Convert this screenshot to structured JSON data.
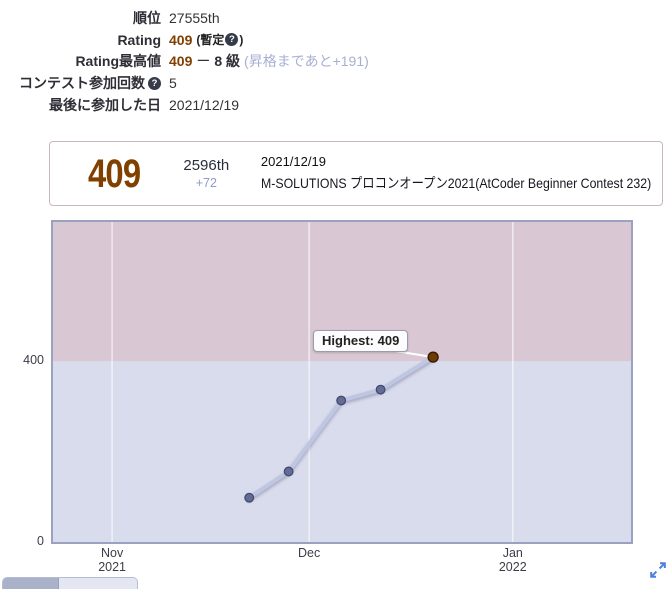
{
  "stats": {
    "rank": {
      "label": "順位",
      "value": "27555th"
    },
    "rating": {
      "label": "Rating",
      "value": "409",
      "note_open": "(暫定",
      "note_close": ")"
    },
    "highest": {
      "label": "Rating最高値",
      "value": "409",
      "separator": "ー",
      "kyu": "8 級",
      "promotion": "(昇格まであと+191)"
    },
    "competitions": {
      "label": "コンテスト参加回数",
      "value": "5"
    },
    "last_competed": {
      "label": "最後に参加した日",
      "value": "2021/12/19"
    }
  },
  "icons": {
    "question": "?",
    "expand": "expand-arrows"
  },
  "latest_contest": {
    "rating": "409",
    "place": "2596th",
    "diff": "+72",
    "date": "2021/12/19",
    "name": "M-SOLUTIONS プロコンオープン2021(AtCoder Beginner Contest 232)"
  },
  "chart_data": {
    "type": "line",
    "series": [
      {
        "name": "Rating",
        "x": [
          "2021-11-21",
          "2021-11-27",
          "2021-12-05",
          "2021-12-11",
          "2021-12-19"
        ],
        "values": [
          98,
          156,
          313,
          337,
          409
        ]
      }
    ],
    "xlim": [
      "2021-10-23",
      "2022-01-19"
    ],
    "ylim": [
      0,
      708
    ],
    "y_ticks": [
      {
        "value": 400,
        "label": "400"
      },
      {
        "value": 0,
        "label": "0"
      }
    ],
    "x_ticks": [
      {
        "date": "2021-11-01",
        "label": "Nov",
        "sublabel": "2021"
      },
      {
        "date": "2021-12-01",
        "label": "Dec",
        "sublabel": ""
      },
      {
        "date": "2022-01-01",
        "label": "Jan",
        "sublabel": "2022"
      }
    ],
    "bands": [
      {
        "from": 400,
        "to": 708,
        "color": "#d9c8d4",
        "name": "brown-rating-band"
      },
      {
        "from": 0,
        "to": 400,
        "color": "#d9dcec",
        "name": "gray-rating-band"
      }
    ],
    "grid": "vertical-month-gridlines",
    "legend": "none",
    "annotation": "Highest: 409",
    "contest_time_offset_days": 0.875,
    "line_color": "#bfc6e2",
    "gridline_color": "rgba(255,255,255,0.6)",
    "point_color": "#636c94",
    "point_edge_color": "#424a6e",
    "highest_point_color": "#6e3a01",
    "highest_point_edge_color": "#301900",
    "connector_color": "#ffffff"
  },
  "colors": {
    "rating_brown": "#804000",
    "diff_muted_blue": "#8f9bc8",
    "promotion_note": "#a8afd3",
    "box_border": "#c8b6bf",
    "chart_border": "#9aa2bf",
    "tooltip_border": "#9b9bac",
    "expand_icon_blue": "#4d7ee3"
  }
}
